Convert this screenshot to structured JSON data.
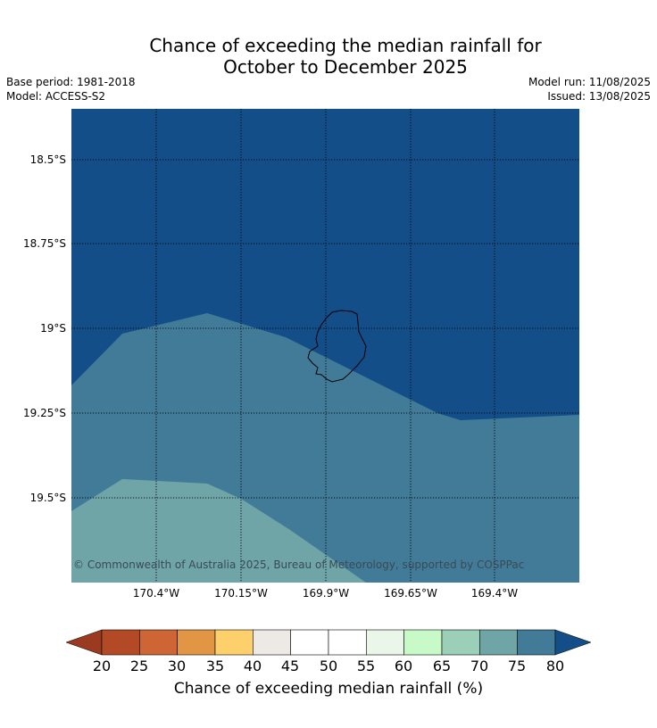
{
  "title_line1": "Chance of exceeding the median rainfall for",
  "title_line2": "October to December 2025",
  "base_period": "Base period: 1981-2018",
  "model": "Model: ACCESS-S2",
  "model_run": "Model run: 11/08/2025",
  "issued": "Issued: 13/08/2025",
  "latitudes": [
    "18.5°S",
    "18.75°S",
    "19°S",
    "19.25°S",
    "19.5°S"
  ],
  "longitudes": [
    "170.4°W",
    "170.15°W",
    "169.9°W",
    "169.65°W",
    "169.4°W"
  ],
  "copyright": "© Commonwealth of Australia 2025, Bureau of Meteorology, supported by COSPPac",
  "colorbar": {
    "label": "Chance of exceeding median rainfall (%)",
    "ticks": [
      "20",
      "25",
      "30",
      "35",
      "40",
      "45",
      "50",
      "55",
      "60",
      "65",
      "70",
      "75",
      "80"
    ],
    "under_color": "#9a3a20",
    "over_color": "#134e88",
    "colors": [
      "#b34a26",
      "#cd6634",
      "#e29545",
      "#fdd06c",
      "#ede9e5",
      "#ffffff",
      "#ffffff",
      "#e9f6e9",
      "#c8fac8",
      "#9bcfb8",
      "#6fa5a7",
      "#427b98"
    ]
  },
  "regions": {
    "over_80_color": "#134e88",
    "range_75_80_color": "#427b98",
    "range_70_75_color": "#6fa5a7"
  }
}
